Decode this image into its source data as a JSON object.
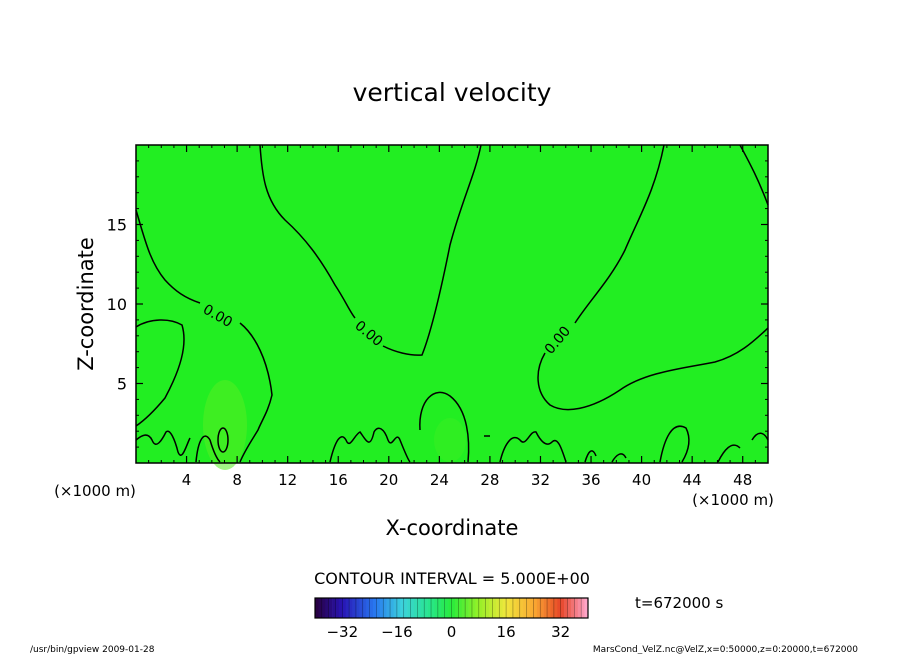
{
  "chart_data": {
    "type": "contour",
    "title": "vertical velocity",
    "xlabel": "X-coordinate",
    "ylabel": "Z-coordinate",
    "x_unit": "(×1000 m)",
    "z_unit": "(×1000 m)",
    "xlim": [
      0,
      50
    ],
    "ylim": [
      0,
      20
    ],
    "x_ticks": [
      "4",
      "8",
      "12",
      "16",
      "20",
      "24",
      "28",
      "32",
      "36",
      "40",
      "44",
      "48"
    ],
    "y_ticks": [
      "5",
      "10",
      "15"
    ],
    "contour_labels": [
      "0.00",
      "0.00",
      "0.00"
    ],
    "contour_interval": "CONTOUR INTERVAL = 5.000E+00",
    "time_label": "t=672000 s",
    "colorbar": {
      "min": -40,
      "max": 40,
      "tick_labels": [
        "−32",
        "−16",
        "0",
        "16",
        "32"
      ]
    },
    "colors": {
      "field": "#22ee22",
      "contour": "#000000"
    }
  },
  "footer": {
    "left": "/usr/bin/gpview  2009-01-28",
    "right": "MarsCond_VelZ.nc@VelZ,x=0:50000,z=0:20000,t=672000"
  }
}
